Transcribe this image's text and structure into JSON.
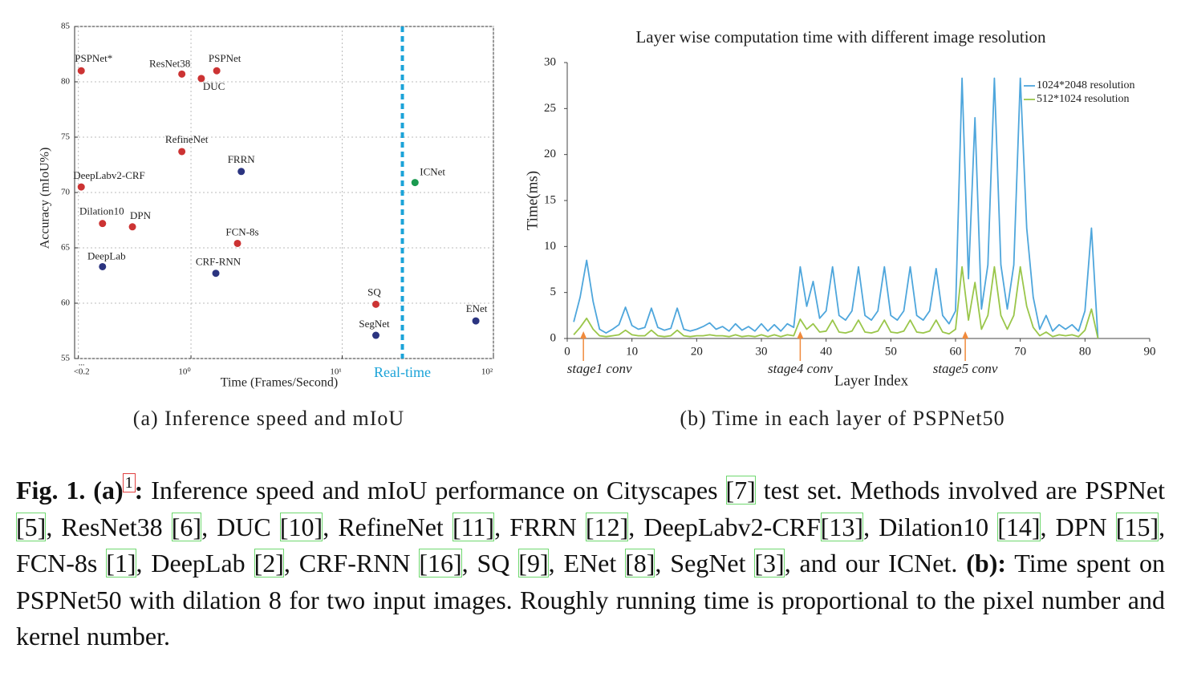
{
  "chart_data": [
    {
      "type": "scatter",
      "x_label": "Time (Frames/Second)",
      "y_label": "Accuracy (mIoU%)",
      "subcaption": "(a) Inference speed and mIoU",
      "x_scale": "log",
      "xlim": [
        0.17,
        100
      ],
      "xticks": [
        {
          "value": 0.18,
          "label": "<0.2"
        },
        {
          "value": 1,
          "label": "10⁰"
        },
        {
          "value": 10,
          "label": "10¹"
        },
        {
          "value": 100,
          "label": "10²"
        }
      ],
      "x_tick_note": "...",
      "ylim": [
        55,
        85
      ],
      "yticks": [
        55,
        60,
        65,
        70,
        75,
        80,
        85
      ],
      "grid": true,
      "labels": [
        "PSPNet*",
        "ResNet38",
        "DUC",
        "PSPNet",
        "RefineNet",
        "FRRN",
        "DeepLabv2-CRF",
        "ICNet",
        "Dilation10",
        "DPN",
        "FCN-8s",
        "DeepLab",
        "CRF-RNN",
        "SQ",
        "SegNet",
        "ENet"
      ],
      "x": [
        0.188,
        0.87,
        1.17,
        1.48,
        0.87,
        2.15,
        0.188,
        30.3,
        0.26,
        0.41,
        2.03,
        0.26,
        1.46,
        16.7,
        16.7,
        76.5
      ],
      "values": [
        81.0,
        80.7,
        80.3,
        81.0,
        73.7,
        71.9,
        70.5,
        70.9,
        67.2,
        66.9,
        65.4,
        63.3,
        62.7,
        59.9,
        57.1,
        58.4
      ],
      "colors": [
        "#cc3333",
        "#cc3333",
        "#cc3333",
        "#cc3333",
        "#cc3333",
        "#2b3480",
        "#cc3333",
        "#1a9a50",
        "#cc3333",
        "#cc3333",
        "#cc3333",
        "#2b3480",
        "#2b3480",
        "#cc3333",
        "#2b3480",
        "#2b3480"
      ],
      "threshold": {
        "value": 25,
        "label": "Real-time",
        "color": "#1ba3d8"
      }
    },
    {
      "type": "line",
      "title": "Layer wise computation time with different image resolution",
      "x_label": "Layer Index",
      "y_label": "Time(ms)",
      "subcaption": "(b) Time in each layer of PSPNet50",
      "xlim": [
        0,
        90
      ],
      "xticks": [
        0,
        10,
        20,
        30,
        40,
        50,
        60,
        70,
        80,
        90
      ],
      "ylim": [
        0,
        30
      ],
      "yticks": [
        0,
        5,
        10,
        15,
        20,
        25,
        30
      ],
      "legend": "upper right",
      "x": [
        1,
        2,
        3,
        4,
        5,
        6,
        7,
        8,
        9,
        10,
        11,
        12,
        13,
        14,
        15,
        16,
        17,
        18,
        19,
        20,
        21,
        22,
        23,
        24,
        25,
        26,
        27,
        28,
        29,
        30,
        31,
        32,
        33,
        34,
        35,
        36,
        37,
        38,
        39,
        40,
        41,
        42,
        43,
        44,
        45,
        46,
        47,
        48,
        49,
        50,
        51,
        52,
        53,
        54,
        55,
        56,
        57,
        58,
        59,
        60,
        61,
        62,
        63,
        64,
        65,
        66,
        67,
        68,
        69,
        70,
        71,
        72,
        73,
        74,
        75,
        76,
        77,
        78,
        79,
        80,
        81,
        82
      ],
      "series": [
        {
          "name": "1024*2048 resolution",
          "color": "#4ea6dc",
          "values": [
            1.8,
            4.5,
            8.5,
            4,
            1.0,
            0.6,
            1.0,
            1.5,
            3.4,
            1.4,
            1.0,
            1.2,
            3.3,
            1.2,
            0.9,
            1.1,
            3.3,
            1.0,
            0.8,
            1.0,
            1.3,
            1.7,
            1.0,
            1.3,
            0.8,
            1.6,
            0.9,
            1.3,
            0.8,
            1.6,
            0.8,
            1.5,
            0.8,
            1.6,
            1.2,
            7.8,
            3.5,
            6.2,
            2.2,
            3.0,
            7.8,
            2.5,
            2.0,
            3.0,
            7.8,
            2.5,
            2.0,
            3.0,
            7.8,
            2.5,
            2.0,
            3.0,
            7.8,
            2.5,
            2.0,
            3.0,
            7.6,
            2.5,
            1.6,
            3.0,
            28.3,
            6.5,
            24,
            3.2,
            8,
            28.3,
            8,
            3.2,
            8,
            28.3,
            12,
            4.5,
            1.0,
            2.5,
            0.8,
            1.5,
            1.0,
            1.5,
            0.8,
            3,
            12,
            0
          ]
        },
        {
          "name": "512*1024 resolution",
          "color": "#9ac64a",
          "values": [
            0.4,
            1.2,
            2.2,
            1.0,
            0.3,
            0.2,
            0.3,
            0.4,
            0.9,
            0.4,
            0.3,
            0.3,
            0.9,
            0.3,
            0.2,
            0.3,
            0.9,
            0.3,
            0.2,
            0.3,
            0.3,
            0.4,
            0.3,
            0.3,
            0.2,
            0.4,
            0.2,
            0.3,
            0.2,
            0.4,
            0.2,
            0.4,
            0.2,
            0.4,
            0.3,
            2.1,
            1.0,
            1.6,
            0.7,
            0.8,
            2.0,
            0.7,
            0.6,
            0.8,
            2.0,
            0.7,
            0.6,
            0.8,
            2.0,
            0.7,
            0.6,
            0.8,
            2.0,
            0.7,
            0.6,
            0.8,
            2.0,
            0.7,
            0.5,
            1.0,
            7.8,
            2.0,
            6.1,
            1.0,
            2.5,
            7.8,
            2.5,
            1.0,
            2.5,
            7.8,
            3.5,
            1.2,
            0.3,
            0.7,
            0.2,
            0.4,
            0.3,
            0.4,
            0.2,
            0.9,
            3.2,
            0
          ]
        }
      ],
      "annotations": [
        {
          "text": "stage1 conv",
          "x": 2.5,
          "color": "#f08a3c"
        },
        {
          "text": "stage4 conv",
          "x": 36,
          "color": "#f08a3c"
        },
        {
          "text": "stage5 conv",
          "x": 61.5,
          "color": "#f08a3c"
        }
      ]
    }
  ],
  "caption": {
    "segments": [
      {
        "t": "Fig. 1. (a)",
        "s": "b"
      },
      {
        "t": "1",
        "s": "sup"
      },
      {
        "t": ":",
        "s": "b"
      },
      {
        "t": " Inference speed and mIoU performance on Cityscapes ",
        "s": "t"
      },
      {
        "t": "[7]",
        "s": "c"
      },
      {
        "t": " test set. Methods involved are PSPNet ",
        "s": "t"
      },
      {
        "t": "[5]",
        "s": "c"
      },
      {
        "t": ", ResNet38 ",
        "s": "t"
      },
      {
        "t": "[6]",
        "s": "c"
      },
      {
        "t": ", DUC ",
        "s": "t"
      },
      {
        "t": "[10]",
        "s": "c"
      },
      {
        "t": ", RefineNet ",
        "s": "t"
      },
      {
        "t": "[11]",
        "s": "c"
      },
      {
        "t": ", FRRN ",
        "s": "t"
      },
      {
        "t": "[12]",
        "s": "c"
      },
      {
        "t": ", DeepLabv2-CRF",
        "s": "t"
      },
      {
        "t": "[13]",
        "s": "c"
      },
      {
        "t": ", Dilation10 ",
        "s": "t"
      },
      {
        "t": "[14]",
        "s": "c"
      },
      {
        "t": ", DPN ",
        "s": "t"
      },
      {
        "t": "[15]",
        "s": "c"
      },
      {
        "t": ", FCN-8s ",
        "s": "t"
      },
      {
        "t": "[1]",
        "s": "c"
      },
      {
        "t": ", DeepLab ",
        "s": "t"
      },
      {
        "t": "[2]",
        "s": "c"
      },
      {
        "t": ", CRF-RNN ",
        "s": "t"
      },
      {
        "t": "[16]",
        "s": "c"
      },
      {
        "t": ", SQ ",
        "s": "t"
      },
      {
        "t": "[9]",
        "s": "c"
      },
      {
        "t": ", ENet ",
        "s": "t"
      },
      {
        "t": "[8]",
        "s": "c"
      },
      {
        "t": ", SegNet ",
        "s": "t"
      },
      {
        "t": "[3]",
        "s": "c"
      },
      {
        "t": ", and our ICNet. ",
        "s": "t"
      },
      {
        "t": "(b):",
        "s": "b"
      },
      {
        "t": " Time spent on PSPNet50 with dilation 8 for two input images. Roughly running time is proportional to the pixel number and kernel number.",
        "s": "t"
      }
    ]
  }
}
